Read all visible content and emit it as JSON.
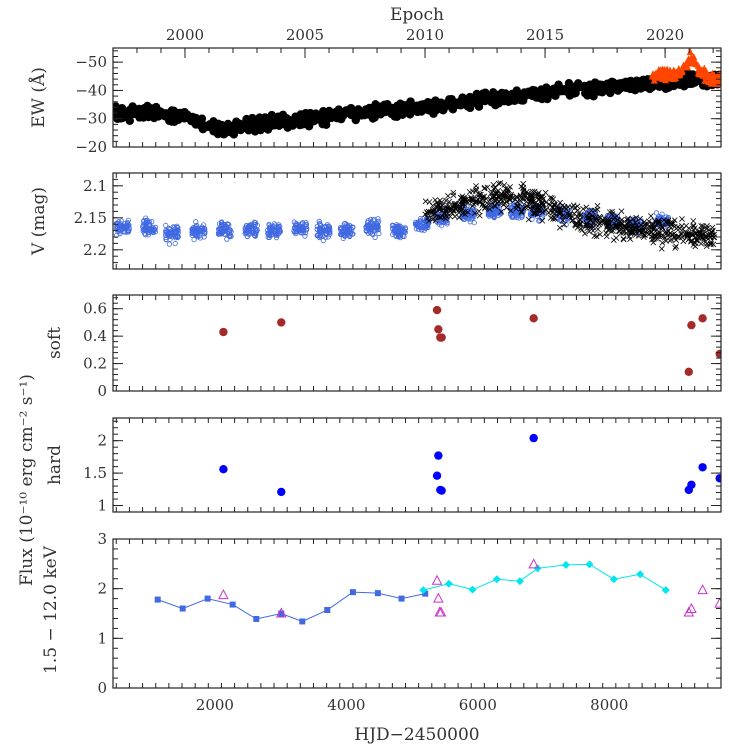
{
  "chart_data": {
    "type": "scatter",
    "x_axis": {
      "label": "HJD−2450000",
      "range": [
        450,
        9700
      ],
      "ticks": [
        "2000",
        "4000",
        "6000",
        "8000"
      ],
      "tick_values": [
        2000,
        4000,
        6000,
        8000
      ]
    },
    "top_axis": {
      "label": "Epoch",
      "ticks": [
        "2000",
        "2005",
        "2010",
        "2015",
        "2020"
      ],
      "tick_hjd": [
        1545,
        3371,
        5197,
        7023,
        8849
      ]
    },
    "shared_ylabel": "Flux (10⁻¹⁰ erg cm⁻² s⁻¹)",
    "shared_ylabel_line2": "1.5 − 12.0 keV",
    "panels": [
      {
        "id": "ew",
        "ylabel": "EW (Å)",
        "ylim": [
          -20,
          -55
        ],
        "yticks": [
          "−50",
          "−40",
          "−30",
          "−20"
        ],
        "ytick_values": [
          -50,
          -40,
          -30,
          -20
        ],
        "series": [
          {
            "color": "#000000",
            "marker": "filled-circle",
            "trend": [
              [
                450,
                -32
              ],
              [
                1000,
                -32
              ],
              [
                1500,
                -31
              ],
              [
                1900,
                -28
              ],
              [
                2150,
                -26
              ],
              [
                2500,
                -28
              ],
              [
                3000,
                -29
              ],
              [
                3500,
                -30
              ],
              [
                4000,
                -32
              ],
              [
                4500,
                -33
              ],
              [
                5000,
                -33.5
              ],
              [
                5500,
                -35
              ],
              [
                6000,
                -36.5
              ],
              [
                6500,
                -37.5
              ],
              [
                7000,
                -39
              ],
              [
                7500,
                -40
              ],
              [
                8000,
                -41
              ],
              [
                8500,
                -42
              ],
              [
                9000,
                -43
              ],
              [
                9300,
                -44
              ],
              [
                9700,
                -44
              ]
            ],
            "count": 900
          },
          {
            "color": "#ff4500",
            "marker": "filled-triangle",
            "trend": [
              [
                8650,
                -45
              ],
              [
                8800,
                -46
              ],
              [
                9000,
                -45
              ],
              [
                9150,
                -48
              ],
              [
                9250,
                -52
              ],
              [
                9400,
                -46
              ],
              [
                9550,
                -44
              ],
              [
                9700,
                -44
              ]
            ],
            "count": 140
          }
        ]
      },
      {
        "id": "vmag",
        "ylabel": "V (mag)",
        "ylim": [
          2.23,
          2.08
        ],
        "yticks": [
          "2.1",
          "2.15",
          "2.2"
        ],
        "ytick_values": [
          2.1,
          2.15,
          2.2
        ],
        "series": [
          {
            "color": "#4169e1",
            "marker": "open-circle",
            "seasons": [
              [
                600,
                2.165
              ],
              [
                1000,
                2.165
              ],
              [
                1350,
                2.175
              ],
              [
                1750,
                2.17
              ],
              [
                2150,
                2.17
              ],
              [
                2550,
                2.17
              ],
              [
                2900,
                2.17
              ],
              [
                3300,
                2.165
              ],
              [
                3650,
                2.17
              ],
              [
                4000,
                2.17
              ],
              [
                4400,
                2.165
              ],
              [
                4800,
                2.17
              ],
              [
                5150,
                2.16
              ],
              [
                5450,
                2.15
              ],
              [
                5850,
                2.145
              ],
              [
                6250,
                2.14
              ],
              [
                6600,
                2.14
              ],
              [
                6900,
                2.14
              ],
              [
                7300,
                2.145
              ],
              [
                7700,
                2.15
              ],
              [
                8050,
                2.155
              ],
              [
                8400,
                2.16
              ],
              [
                8800,
                2.155
              ]
            ],
            "count": 1400
          },
          {
            "color": "#000000",
            "marker": "cross",
            "trend": [
              [
                5200,
                2.145
              ],
              [
                5500,
                2.135
              ],
              [
                5900,
                2.125
              ],
              [
                6300,
                2.115
              ],
              [
                6700,
                2.12
              ],
              [
                7100,
                2.135
              ],
              [
                7500,
                2.15
              ],
              [
                7900,
                2.16
              ],
              [
                8300,
                2.165
              ],
              [
                8700,
                2.17
              ],
              [
                9100,
                2.175
              ],
              [
                9600,
                2.18
              ]
            ],
            "count": 700
          }
        ]
      },
      {
        "id": "soft",
        "ylabel": "soft",
        "ylim": [
          0,
          0.7
        ],
        "yticks": [
          "0",
          "0.2",
          "0.4",
          "0.6"
        ],
        "ytick_values": [
          0,
          0.2,
          0.4,
          0.6
        ],
        "series": [
          {
            "color": "#a52a2a",
            "marker": "filled-circle",
            "x": [
              2130,
              3010,
              5380,
              5400,
              5430,
              5450,
              6850,
              9210,
              9250,
              9420,
              9680
            ],
            "y": [
              0.43,
              0.5,
              0.59,
              0.45,
              0.39,
              0.39,
              0.53,
              0.14,
              0.48,
              0.53,
              0.27
            ]
          }
        ]
      },
      {
        "id": "hard",
        "ylabel": "hard",
        "ylim": [
          0.9,
          2.35
        ],
        "yticks": [
          "1",
          "1.5",
          "2"
        ],
        "ytick_values": [
          1,
          1.5,
          2
        ],
        "series": [
          {
            "color": "#0000ff",
            "marker": "filled-circle",
            "x": [
              2130,
              3010,
              5380,
              5400,
              5430,
              5450,
              6850,
              9210,
              9250,
              9420,
              9680
            ],
            "y": [
              1.56,
              1.21,
              1.46,
              1.77,
              1.24,
              1.23,
              2.04,
              1.24,
              1.32,
              1.59,
              1.42
            ]
          }
        ]
      },
      {
        "id": "flux",
        "ylabel": "",
        "ylim": [
          0,
          3
        ],
        "yticks": [
          "0",
          "1",
          "2",
          "3"
        ],
        "ytick_values": [
          0,
          1,
          2,
          3
        ],
        "series": [
          {
            "color": "#4169e1",
            "marker": "filled-square",
            "connected": true,
            "x": [
              1130,
              1510,
              1890,
              2270,
              2630,
              3010,
              3330,
              3710,
              4100,
              4480,
              4840,
              5200
            ],
            "y": [
              1.78,
              1.6,
              1.8,
              1.68,
              1.39,
              1.5,
              1.34,
              1.57,
              1.93,
              1.91,
              1.8,
              1.9
            ]
          },
          {
            "color": "#00e5ee",
            "marker": "filled-diamond",
            "connected": true,
            "x": [
              5170,
              5560,
              5920,
              6290,
              6640,
              6910,
              7340,
              7700,
              8070,
              8470,
              8860
            ],
            "y": [
              1.97,
              2.1,
              1.98,
              2.19,
              2.15,
              2.41,
              2.48,
              2.49,
              2.19,
              2.29,
              1.97
            ]
          },
          {
            "color": "#cc33cc",
            "marker": "open-triangle",
            "x": [
              2130,
              3010,
              5380,
              5400,
              5420,
              5440,
              6850,
              9210,
              9250,
              9420,
              9680
            ],
            "y": [
              1.87,
              1.5,
              2.16,
              1.8,
              1.52,
              1.52,
              2.49,
              1.52,
              1.59,
              1.97,
              1.7
            ]
          }
        ]
      }
    ]
  }
}
